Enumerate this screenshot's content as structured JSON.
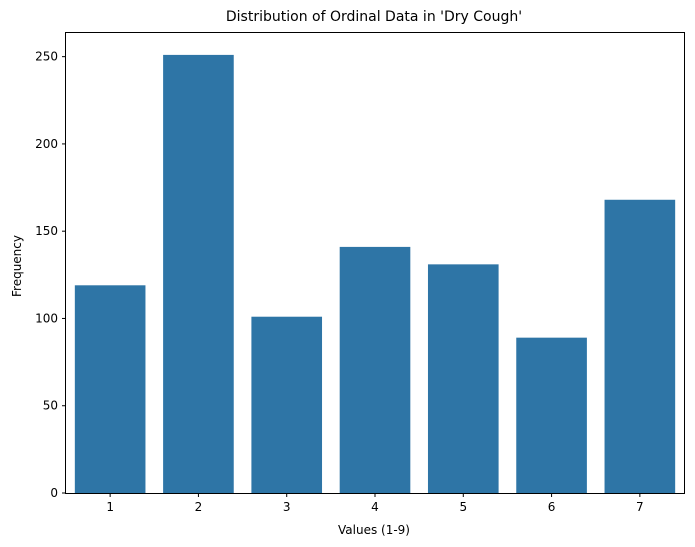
{
  "chart_data": {
    "type": "bar",
    "title": "Distribution of Ordinal Data in 'Dry Cough'",
    "xlabel": "Values (1-9)",
    "ylabel": "Frequency",
    "categories": [
      "1",
      "2",
      "3",
      "4",
      "5",
      "6",
      "7"
    ],
    "values": [
      119,
      251,
      101,
      141,
      131,
      89,
      168
    ],
    "ylim": [
      0,
      263.55
    ],
    "yticks": [
      0,
      50,
      100,
      150,
      200,
      250
    ],
    "grid": false,
    "bar_color": "#2e75a6"
  }
}
